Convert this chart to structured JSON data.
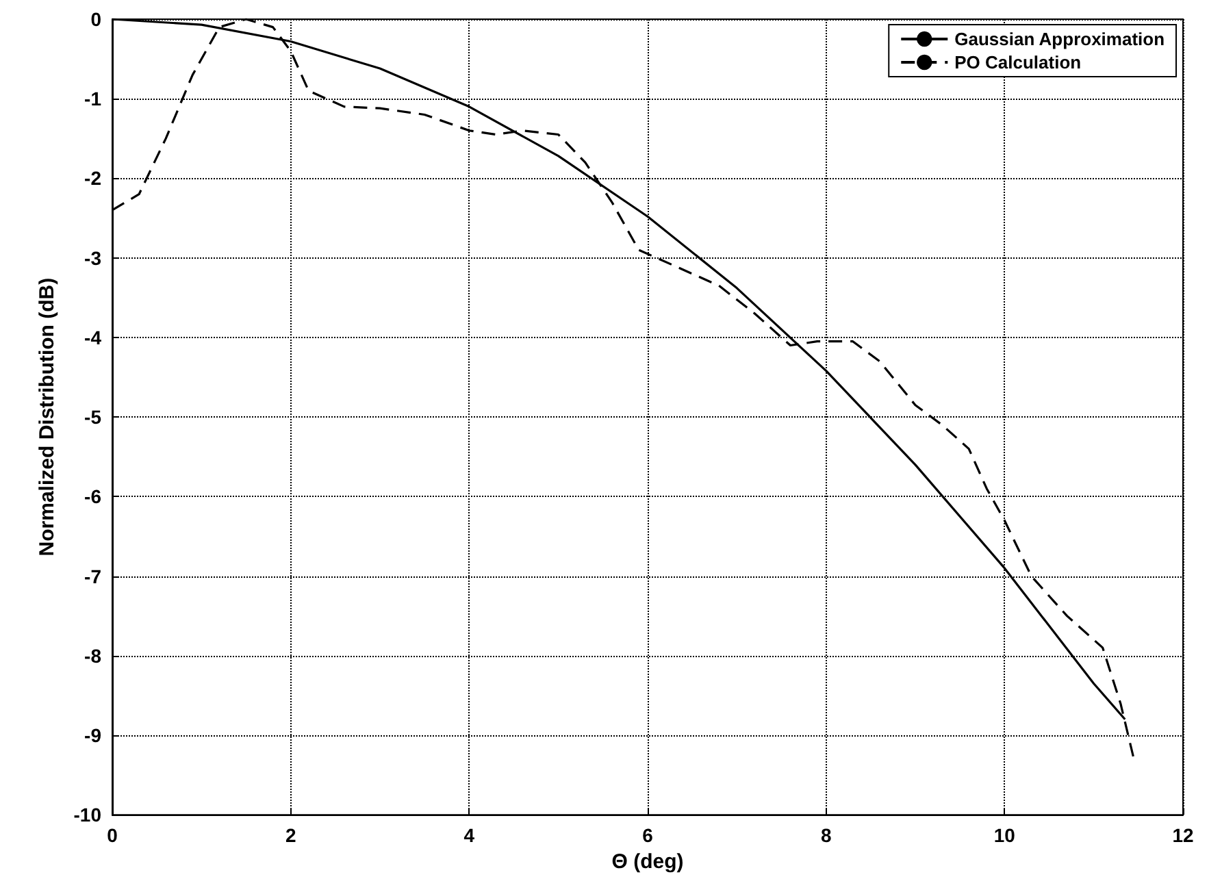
{
  "chart_data": {
    "type": "line",
    "xlabel": "Θ (deg)",
    "ylabel": "Normalized Distribution (dB)",
    "xlim": [
      0,
      12
    ],
    "xticks": [
      0,
      2,
      4,
      6,
      8,
      10,
      12
    ],
    "ylim": [
      -10,
      0
    ],
    "yticks": [
      -10,
      -9,
      -8,
      -7,
      -6,
      -5,
      -4,
      -3,
      -2,
      -1,
      0
    ],
    "grid": true,
    "legend": "top right",
    "marker": "none",
    "series": [
      {
        "name": "Gaussian Approximation",
        "color": "#000000",
        "line_style": "solid",
        "x": [
          0,
          1,
          2,
          3,
          4,
          5,
          6,
          7,
          8,
          9,
          10,
          11,
          11.35
        ],
        "values": [
          0,
          -0.07,
          -0.28,
          -0.62,
          -1.1,
          -1.72,
          -2.48,
          -3.38,
          -4.42,
          -5.6,
          -6.9,
          -8.35,
          -8.8
        ]
      },
      {
        "name": "PO Calculation",
        "color": "#000000",
        "line_style": "dashed",
        "x": [
          0,
          0.3,
          0.6,
          0.9,
          1.2,
          1.5,
          1.8,
          2.0,
          2.2,
          2.6,
          3.0,
          3.5,
          4.0,
          4.3,
          4.6,
          5.0,
          5.3,
          5.6,
          5.9,
          6.3,
          6.8,
          7.2,
          7.6,
          7.9,
          8.3,
          8.6,
          9.0,
          9.3,
          9.6,
          9.8,
          10.0,
          10.3,
          10.7,
          11.1,
          11.3,
          11.45
        ],
        "values": [
          -2.4,
          -2.2,
          -1.5,
          -0.7,
          -0.1,
          0,
          -0.1,
          -0.4,
          -0.9,
          -1.1,
          -1.12,
          -1.2,
          -1.4,
          -1.45,
          -1.4,
          -1.45,
          -1.8,
          -2.3,
          -2.9,
          -3.1,
          -3.35,
          -3.7,
          -4.1,
          -4.05,
          -4.05,
          -4.3,
          -4.85,
          -5.1,
          -5.4,
          -5.9,
          -6.3,
          -7.0,
          -7.5,
          -7.9,
          -8.6,
          -9.3
        ]
      }
    ]
  }
}
